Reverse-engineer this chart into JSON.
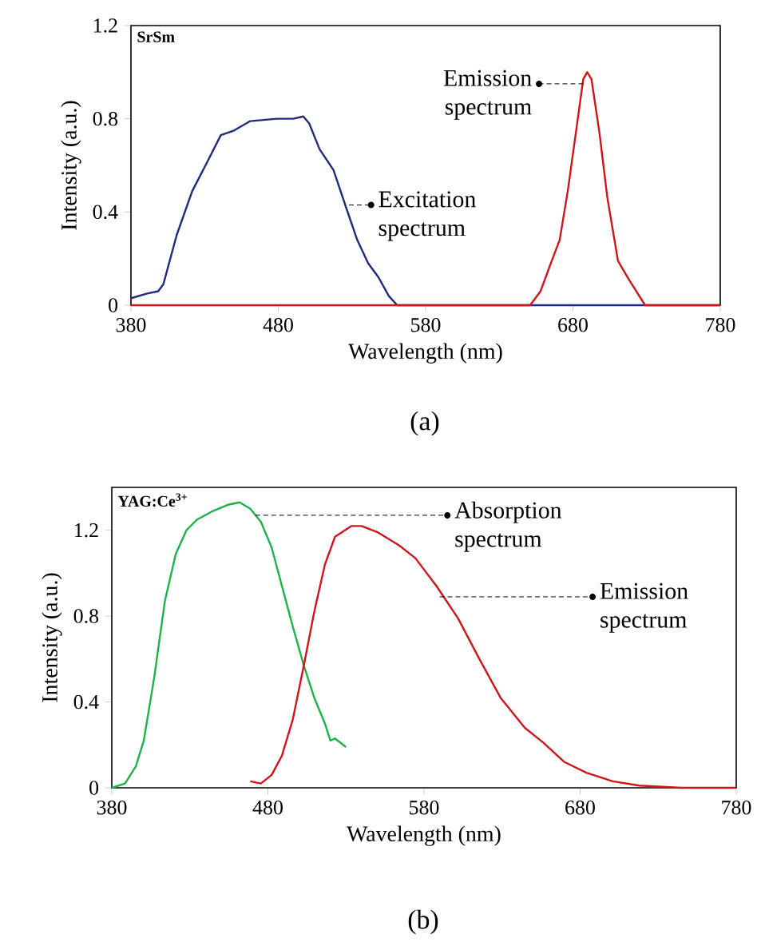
{
  "chart_data": [
    {
      "type": "line",
      "title": "(a)",
      "xlabel": "Wavelength (nm)",
      "ylabel": "Intensity (a.u.)",
      "xlim": [
        380,
        780
      ],
      "xticks": [
        380,
        480,
        580,
        680,
        780
      ],
      "ylim": [
        0,
        1.2
      ],
      "yticks": [
        0,
        0.4,
        0.8,
        1.2
      ],
      "marker": "none",
      "line_style": "solid",
      "annotations": [
        "SrSm",
        {
          "text": "Emission spectrum",
          "x": 687,
          "y": 0.95
        },
        {
          "text": "Excitation spectrum",
          "x": 528,
          "y": 0.43
        }
      ],
      "series": [
        {
          "color": "#1f2a7c",
          "x": [
            380,
            391,
            398.5,
            402,
            411,
            421.6,
            430.6,
            441,
            450,
            461,
            479,
            490,
            497,
            501,
            508,
            517.5,
            526,
            533.6,
            541,
            548,
            555,
            560.7,
            780
          ],
          "values": [
            0.03,
            0.05,
            0.06,
            0.09,
            0.3,
            0.49,
            0.6,
            0.73,
            0.75,
            0.79,
            0.8,
            0.8,
            0.81,
            0.78,
            0.67,
            0.58,
            0.42,
            0.28,
            0.18,
            0.12,
            0.04,
            0,
            0
          ]
        },
        {
          "color": "#d0141c",
          "x": [
            380,
            651,
            658,
            665.6,
            671,
            676.5,
            682,
            687,
            689.7,
            692.6,
            698,
            703.4,
            710.6,
            718,
            729,
            780
          ],
          "values": [
            0,
            0,
            0.06,
            0.19,
            0.28,
            0.49,
            0.74,
            0.97,
            1.0,
            0.97,
            0.74,
            0.46,
            0.19,
            0.11,
            0,
            0
          ]
        }
      ]
    },
    {
      "type": "line",
      "title": "(b)",
      "xlabel": "Wavelength (nm)",
      "ylabel": "Intensity (a.u.)",
      "xlim": [
        380,
        780
      ],
      "xticks": [
        380,
        480,
        580,
        680,
        780
      ],
      "ylim": [
        0,
        1.4
      ],
      "yticks": [
        0,
        0.4,
        0.8,
        1.2
      ],
      "marker": "none",
      "line_style": "solid",
      "annotations": [
        "YAG:Ce$^{3+}$",
        {
          "text": "Absorption spectrum",
          "x": 472,
          "y": 1.27
        },
        {
          "text": "Emission spectrum",
          "x": 590,
          "y": 0.89
        }
      ],
      "series": [
        {
          "color": "#1db34a",
          "x": [
            380,
            388.5,
            395.4,
            400.5,
            407.3,
            414,
            421,
            427.8,
            434.6,
            444.8,
            455,
            461.9,
            468.7,
            475.5,
            482.4,
            489,
            496,
            503,
            509.7,
            516.5,
            520,
            523,
            530
          ],
          "values": [
            0,
            0.02,
            0.1,
            0.22,
            0.52,
            0.87,
            1.09,
            1.2,
            1.25,
            1.29,
            1.32,
            1.33,
            1.3,
            1.24,
            1.12,
            0.94,
            0.75,
            0.57,
            0.42,
            0.3,
            0.22,
            0.23,
            0.19
          ]
        },
        {
          "color": "#d0141c",
          "x": [
            468.7,
            475.5,
            482.4,
            489,
            496,
            503,
            509.7,
            516.5,
            523,
            533.6,
            540,
            550.6,
            564,
            574.5,
            588,
            601.8,
            615.5,
            629,
            644.5,
            656.5,
            670,
            684,
            701,
            718,
            745,
            780
          ],
          "values": [
            0.03,
            0.02,
            0.06,
            0.15,
            0.32,
            0.57,
            0.82,
            1.04,
            1.17,
            1.22,
            1.22,
            1.19,
            1.13,
            1.07,
            0.94,
            0.79,
            0.6,
            0.42,
            0.28,
            0.21,
            0.12,
            0.07,
            0.03,
            0.01,
            0,
            0
          ]
        }
      ]
    }
  ]
}
